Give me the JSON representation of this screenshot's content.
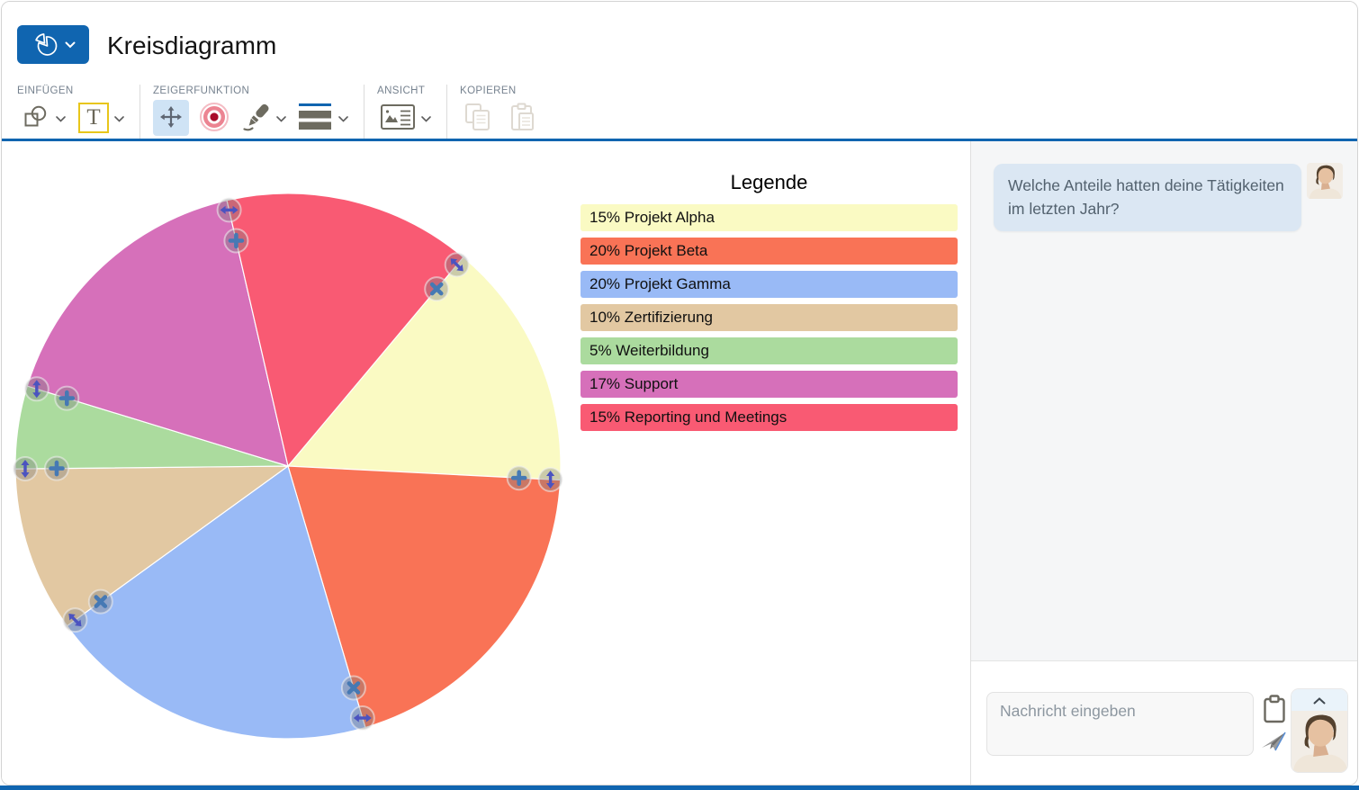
{
  "header": {
    "title": "Kreisdiagramm"
  },
  "toolbar": {
    "groups": [
      {
        "label": "EINFÜGEN",
        "items": [
          "insert-shape",
          "insert-text"
        ]
      },
      {
        "label": "ZEIGERFUNKTION",
        "items": [
          "move-tool",
          "laser-pointer-tool",
          "pen-tool",
          "stripes-tool"
        ]
      },
      {
        "label": "ANSICHT",
        "items": [
          "view-layout"
        ]
      },
      {
        "label": "KOPIEREN",
        "items": [
          "copy",
          "paste"
        ]
      }
    ]
  },
  "chart_data": {
    "type": "pie",
    "legend_title": "Legende",
    "legend_position": "right",
    "start_angle_deg": 50,
    "direction": "clockwise",
    "slices": [
      {
        "label": "Projekt Alpha",
        "value_pct": 15,
        "color": "#fafac3"
      },
      {
        "label": "Projekt Beta",
        "value_pct": 20,
        "color": "#f97356"
      },
      {
        "label": "Projekt Gamma",
        "value_pct": 20,
        "color": "#99baf6"
      },
      {
        "label": "Zertifizierung",
        "value_pct": 10,
        "color": "#e2c8a2"
      },
      {
        "label": "Weiterbildung",
        "value_pct": 5,
        "color": "#abdb9e"
      },
      {
        "label": "Support",
        "value_pct": 17,
        "color": "#d670ba"
      },
      {
        "label": "Reporting und Meetings",
        "value_pct": 15,
        "color": "#f95a73"
      }
    ]
  },
  "canvas": {
    "slice_boundary_handles": [
      {
        "between": "Reporting und Meetings / Projekt Alpha",
        "inner_icon": "x"
      },
      {
        "between": "Projekt Alpha / Projekt Beta",
        "inner_icon": "plus"
      },
      {
        "between": "Projekt Beta / Projekt Gamma",
        "inner_icon": "x"
      },
      {
        "between": "Projekt Gamma / Zertifizierung",
        "inner_icon": "x"
      },
      {
        "between": "Zertifizierung / Weiterbildung",
        "inner_icon": "plus"
      },
      {
        "between": "Weiterbildung / Support",
        "inner_icon": "plus"
      },
      {
        "between": "Support / Reporting und Meetings",
        "inner_icon": "plus"
      }
    ]
  },
  "chat": {
    "incoming_message": "Welche Anteile hatten deine Tätigkeiten im letzten Jahr?",
    "input_placeholder": "Nachricht eingeben"
  },
  "icons": {
    "app_menu": "pie-chart",
    "insert_shape": "square-circle",
    "insert_text": "text-T",
    "move_tool": "move-arrows",
    "laser_pointer": "target-rings",
    "pen_tool": "marker-pen",
    "stripes_tool": "horizontal-bars",
    "view": "image-layout",
    "copy": "copy-pages",
    "paste": "clipboard",
    "compose_clipboard": "clipboard",
    "send": "paper-plane",
    "collapse": "chevron-up"
  },
  "colors": {
    "accent_blue": "#1065b0",
    "active_tool_bg": "#cfe3f5",
    "handle_arrow": "#4b53c0",
    "handle_plus": "#4679b4",
    "bubble_bg": "#dbe7f3",
    "panel_bg": "#f5f6f7"
  }
}
